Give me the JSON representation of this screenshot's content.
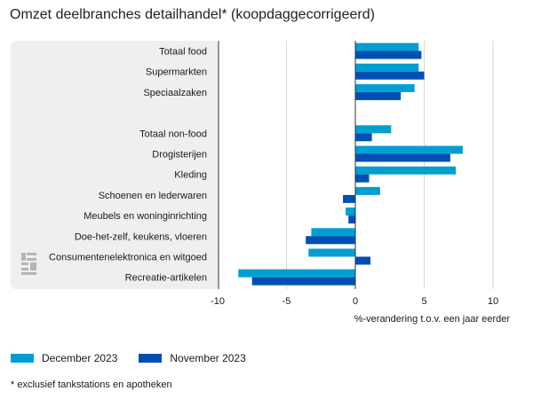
{
  "title": "Omzet deelbranches detailhandel* (koopdaggecorrigeerd)",
  "footnote": "* exclusief tankstations en apotheken",
  "colors": {
    "panel_bg": "#efefef",
    "grid": "#d6d6d6",
    "axis": "#333333"
  },
  "chart_data": {
    "type": "bar",
    "orientation": "horizontal",
    "categories": [
      "Totaal food",
      "Supermarkten",
      "Speciaalzaken",
      "",
      "Totaal non-food",
      "Drogisterijen",
      "Kleding",
      "Schoenen en lederwaren",
      "Meubels en woninginrichting",
      "Doe-het-zelf, keukens, vloeren",
      "Consumentenelektronica en witgoed",
      "Recreatie-artikelen"
    ],
    "series": [
      {
        "name": "December 2023",
        "color": "#009fd1",
        "values": [
          4.6,
          4.6,
          4.3,
          null,
          2.6,
          7.8,
          7.3,
          1.8,
          -0.7,
          -3.2,
          -3.4,
          -8.5
        ]
      },
      {
        "name": "November 2023",
        "color": "#0050b4",
        "values": [
          4.8,
          5.0,
          3.3,
          null,
          1.2,
          6.9,
          1.0,
          -0.9,
          -0.5,
          -3.6,
          1.1,
          -7.5
        ]
      }
    ],
    "xlabel": "%-verandering t.o.v. een jaar eerder",
    "xlim": [
      -10,
      10
    ],
    "xticks": [
      -10,
      -5,
      0,
      5,
      10
    ],
    "grid": true,
    "legend_position": "bottom-left"
  }
}
